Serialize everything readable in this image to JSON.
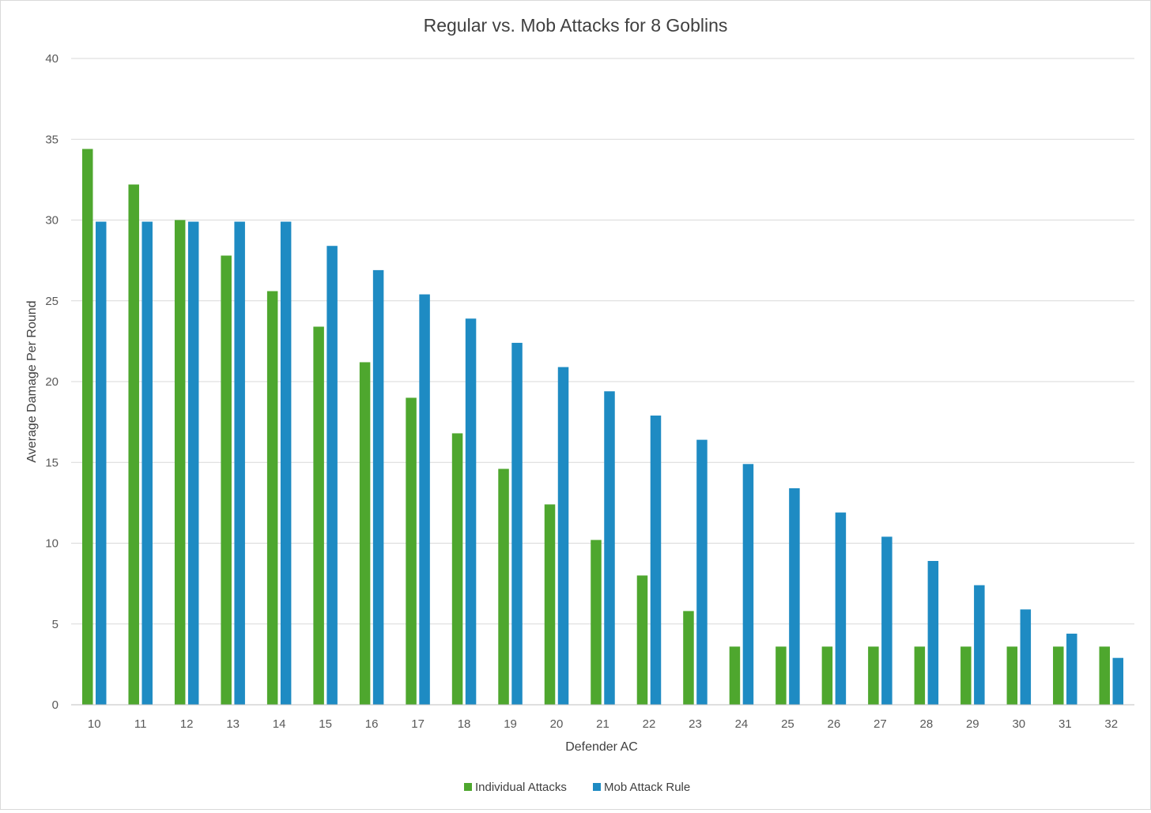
{
  "chart_data": {
    "type": "bar",
    "title": "Regular vs. Mob Attacks for 8 Goblins",
    "xlabel": "Defender AC",
    "ylabel": "Average Damage Per Round",
    "ylim": [
      0,
      40
    ],
    "yticks": [
      "0",
      "5",
      "10",
      "15",
      "20",
      "25",
      "30",
      "35",
      "40"
    ],
    "grid": true,
    "legend_position": "bottom",
    "categories": [
      "10",
      "11",
      "12",
      "13",
      "14",
      "15",
      "16",
      "17",
      "18",
      "19",
      "20",
      "21",
      "22",
      "23",
      "24",
      "25",
      "26",
      "27",
      "28",
      "29",
      "30",
      "31",
      "32"
    ],
    "series": [
      {
        "name": "Individual Attacks",
        "color": "#4ea72e",
        "values": [
          34.4,
          32.2,
          30.0,
          27.8,
          25.6,
          23.4,
          21.2,
          19.0,
          16.8,
          14.6,
          12.4,
          10.2,
          8.0,
          5.8,
          3.6,
          3.6,
          3.6,
          3.6,
          3.6,
          3.6,
          3.6,
          3.6,
          3.6
        ]
      },
      {
        "name": "Mob Attack Rule",
        "color": "#1e8bc3",
        "values": [
          29.9,
          29.9,
          29.9,
          29.9,
          29.9,
          28.4,
          26.9,
          25.4,
          23.9,
          22.4,
          20.9,
          19.4,
          17.9,
          16.4,
          14.9,
          13.4,
          11.9,
          10.4,
          8.9,
          7.4,
          5.9,
          4.4,
          2.9
        ]
      }
    ]
  }
}
